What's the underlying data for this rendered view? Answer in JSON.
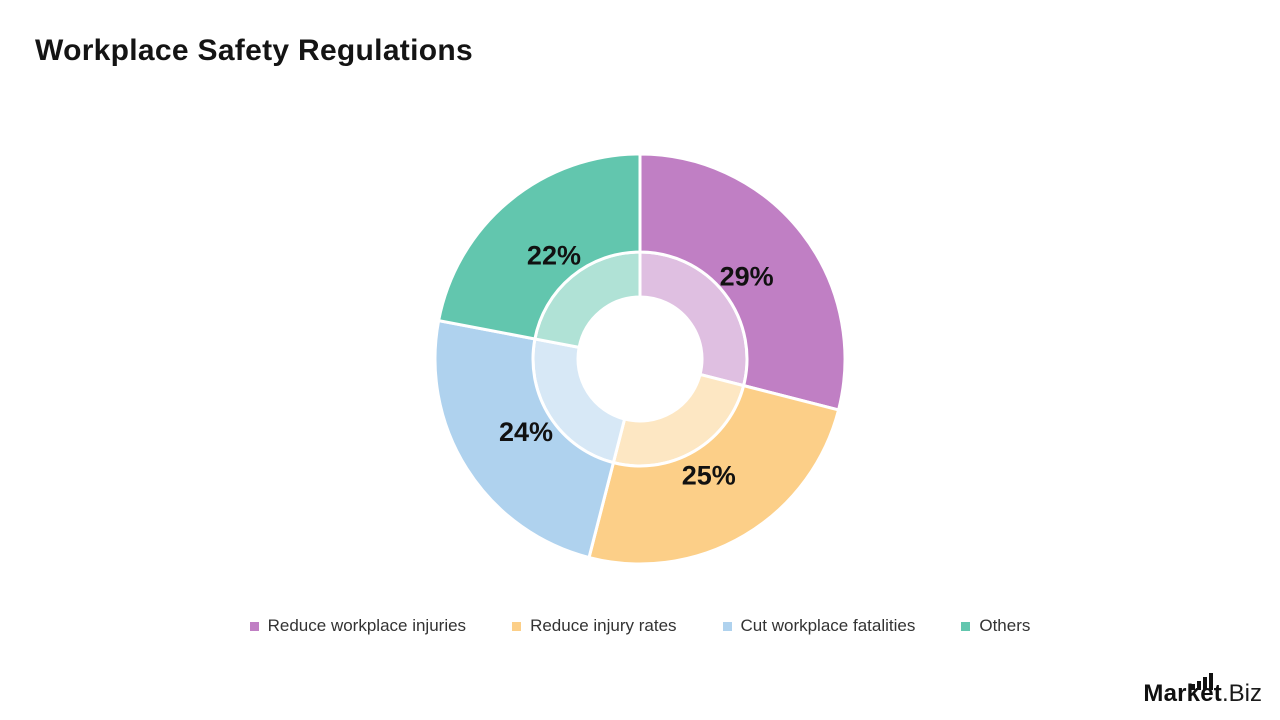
{
  "title": "Workplace Safety Regulations",
  "chart_data": {
    "type": "pie",
    "subtype": "double-ring-donut",
    "title": "Workplace Safety Regulations",
    "start_angle_deg": 0,
    "direction": "clockwise",
    "total": 100,
    "segments": [
      {
        "label": "Reduce workplace injuries",
        "value": 29,
        "data_label": "29%",
        "color": "#c07fc4"
      },
      {
        "label": "Reduce injury rates",
        "value": 25,
        "data_label": "25%",
        "color": "#fccf88"
      },
      {
        "label": "Cut workplace fatalities",
        "value": 24,
        "data_label": "24%",
        "color": "#afd2ee"
      },
      {
        "label": "Others",
        "value": 22,
        "data_label": "22%",
        "color": "#62c6ae"
      }
    ],
    "inner_ring_opacity": 0.5,
    "hole_color": "#ffffff",
    "divider_color": "#ffffff",
    "label_color": "#111111",
    "legend_position": "bottom"
  },
  "logo": {
    "brand_bold": "Market",
    "brand_light": ".Biz"
  }
}
